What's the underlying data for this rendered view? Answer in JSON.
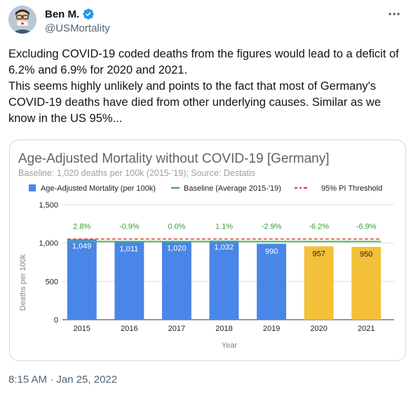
{
  "tweet": {
    "author_name": "Ben M.",
    "handle": "@USMortality",
    "text": "Excluding COVID-19 coded deaths from the figures would lead to a deficit of 6.2% and 6.9% for 2020 and 2021.\nThis seems highly unlikely and points to the fact that most of Germany's COVID-19 deaths have died from other underlying causes. Similar as we know in the US 95%...",
    "timestamp": "8:15 AM · Jan 25, 2022"
  },
  "icons": {
    "verified": "verified-badge-icon",
    "more": "more-options-icon"
  },
  "colors": {
    "bar_normal": "#4a86e8",
    "bar_highlight": "#f3c03a",
    "baseline": "#51b04f",
    "threshold": "#d9534f",
    "delta_text": "#3a9c3a",
    "verified": "#1d9bf0"
  },
  "chart_data": {
    "type": "bar",
    "title": "Age-Adjusted Mortality without COVID-19 [Germany]",
    "subtitle": "Baseline: 1,020 deaths per 100k (2015-'19); Source: Destatis",
    "xlabel": "Year",
    "ylabel": "Deaths per 100k",
    "ylim": [
      0,
      1500
    ],
    "yticks": [
      "0",
      "500",
      "1,000",
      "1,500"
    ],
    "ytick_values": [
      0,
      500,
      1000,
      1500
    ],
    "categories": [
      "2015",
      "2016",
      "2017",
      "2018",
      "2019",
      "2020",
      "2021"
    ],
    "values": [
      1049,
      1011,
      1020,
      1032,
      990,
      957,
      950
    ],
    "value_labels": [
      "1,049",
      "1,011",
      "1,020",
      "1,032",
      "990",
      "957",
      "950"
    ],
    "deltas": [
      "2.8%",
      "-0.9%",
      "0.0%",
      "1.1%",
      "-2.9%",
      "-6.2%",
      "-6.9%"
    ],
    "highlighted": [
      false,
      false,
      false,
      false,
      false,
      true,
      true
    ],
    "baseline": 1020,
    "threshold": 1052,
    "legend": {
      "placement": "top",
      "bars": "Age-Adjusted Mortality (per 100k)",
      "baseline": "Baseline (Average 2015-'19)",
      "threshold": "95% PI Threshold"
    },
    "grid": true
  }
}
